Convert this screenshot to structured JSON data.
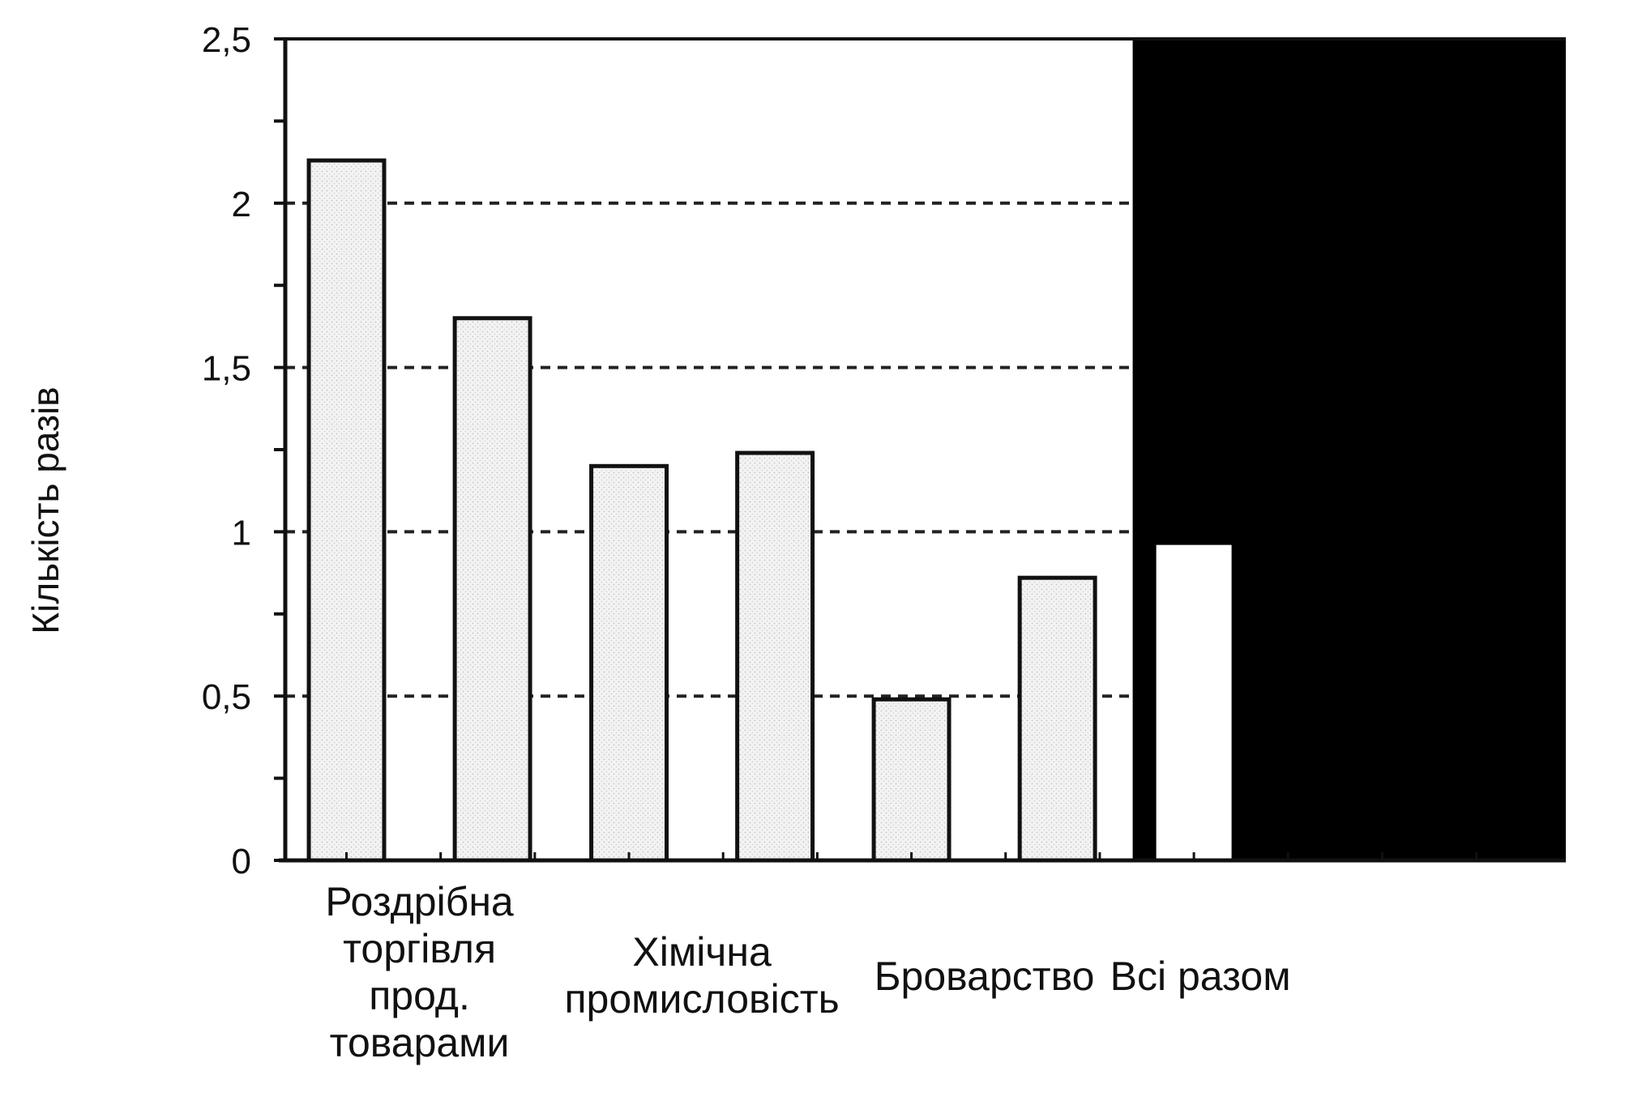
{
  "chart_data": {
    "type": "bar",
    "ylabel": "Кількість разів",
    "ylim": [
      0,
      2.5
    ],
    "y_ticks": [
      "0",
      "0,5",
      "1",
      "1,5",
      "2",
      "2,5"
    ],
    "grid": "dashed at 0.5, 1, 1.5, 2",
    "categories": [
      {
        "label_lines": [
          "Роздрібна",
          "торгівля",
          "прод.",
          "товарами"
        ],
        "values": [
          2.13,
          1.65
        ]
      },
      {
        "label_lines": [
          "Хімічна",
          "промисловість"
        ],
        "values": [
          1.2,
          1.24
        ]
      },
      {
        "label_lines": [
          "Броварство"
        ],
        "values": [
          0.49,
          0.86
        ]
      },
      {
        "label_lines": [
          "Всі разом"
        ],
        "values": [
          0.96
        ],
        "highlighted": true
      }
    ],
    "colors": {
      "bar_fill": "#f1f1f1",
      "bar_stroke": "#111111",
      "highlight_background": "#000000",
      "highlight_bar_fill": "#ffffff",
      "grid": "#222222"
    }
  }
}
